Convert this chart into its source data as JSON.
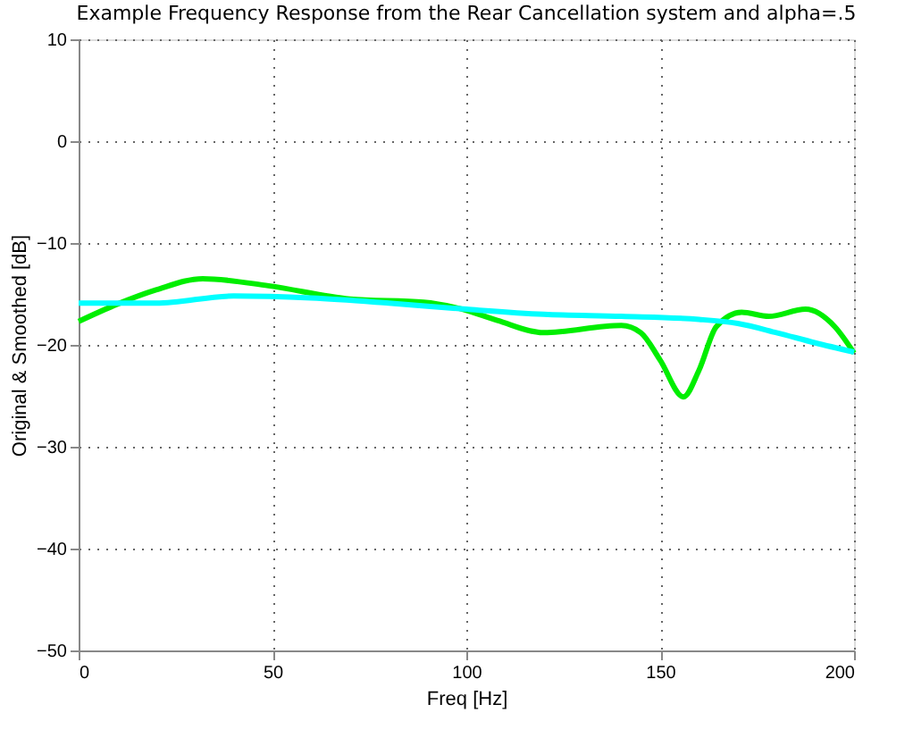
{
  "chart_data": {
    "type": "line",
    "title": "Example Frequency Response from the Rear Cancellation system and alpha=.5",
    "xlabel": "Freq [Hz]",
    "ylabel": "Original & Smoothed [dB]",
    "xlim": [
      0,
      200
    ],
    "xticks": [
      0,
      50,
      100,
      150,
      200
    ],
    "ylim": [
      -50,
      10
    ],
    "yticks": [
      -50,
      -40,
      -30,
      -20,
      -10,
      0,
      10
    ],
    "grid": true,
    "line_style": "solid",
    "marker": "none",
    "series": [
      {
        "color": "#00ee00",
        "x": [
          0,
          10,
          20,
          32,
          49,
          70,
          89,
          99,
          108,
          120,
          140,
          145,
          150,
          156,
          160,
          164.5,
          171,
          178,
          187.5,
          195,
          200
        ],
        "values": [
          -17.7,
          -16,
          -14.6,
          -13.5,
          -14.2,
          -15.5,
          -15.8,
          -16.5,
          -17.6,
          -18.8,
          -18.1,
          -18.8,
          -21.5,
          -25.1,
          -22.5,
          -18.2,
          -16.8,
          -17.2,
          -16.5,
          -18.2,
          -20.8
        ]
      },
      {
        "color": "#00ffff",
        "x": [
          0,
          20,
          40,
          60,
          80,
          100,
          120,
          140,
          160,
          170,
          180,
          190,
          200
        ],
        "values": [
          -15.9,
          -15.9,
          -15.2,
          -15.4,
          -15.9,
          -16.5,
          -17.0,
          -17.2,
          -17.5,
          -17.9,
          -18.8,
          -19.8,
          -20.7
        ]
      }
    ]
  }
}
